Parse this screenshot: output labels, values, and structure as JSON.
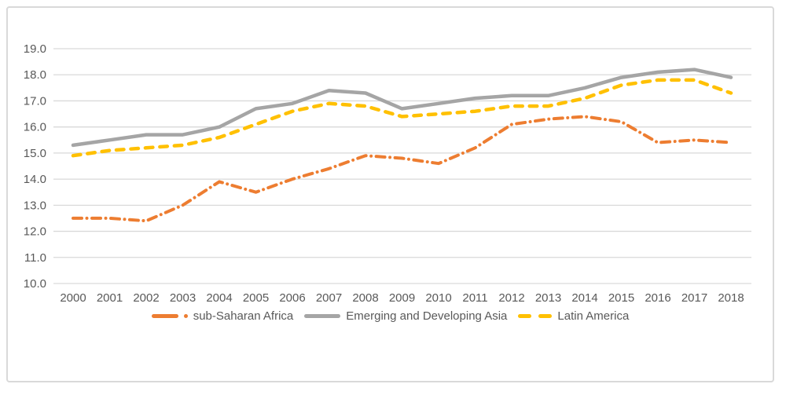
{
  "chart_data": {
    "type": "line",
    "title": "",
    "xlabel": "",
    "ylabel": "",
    "x": [
      "2000",
      "2001",
      "2002",
      "2003",
      "2004",
      "2005",
      "2006",
      "2007",
      "2008",
      "2009",
      "2010",
      "2011",
      "2012",
      "2013",
      "2014",
      "2015",
      "2016",
      "2017",
      "2018"
    ],
    "series": [
      {
        "name": "sub-Saharan Africa",
        "color": "#ED7D31",
        "style": "dash-dot",
        "values": [
          12.5,
          12.5,
          12.4,
          13.0,
          13.9,
          13.5,
          14.0,
          14.4,
          14.9,
          14.8,
          14.6,
          15.2,
          16.1,
          16.3,
          16.4,
          16.2,
          15.4,
          15.5,
          15.4
        ]
      },
      {
        "name": "Emerging and Developing Asia",
        "color": "#A5A5A5",
        "style": "solid",
        "values": [
          15.3,
          15.5,
          15.7,
          15.7,
          16.0,
          16.7,
          16.9,
          17.4,
          17.3,
          16.7,
          16.9,
          17.1,
          17.2,
          17.2,
          17.5,
          17.9,
          18.1,
          18.2,
          17.9
        ]
      },
      {
        "name": "Latin America",
        "color": "#FFC000",
        "style": "dashed",
        "values": [
          14.9,
          15.1,
          15.2,
          15.3,
          15.6,
          16.1,
          16.6,
          16.9,
          16.8,
          16.4,
          16.5,
          16.6,
          16.8,
          16.8,
          17.1,
          17.6,
          17.8,
          17.8,
          17.3
        ]
      }
    ],
    "ylim": [
      10.0,
      19.0
    ],
    "ytick_step": 1.0,
    "yticks": [
      "10.0",
      "11.0",
      "12.0",
      "13.0",
      "14.0",
      "15.0",
      "16.0",
      "17.0",
      "18.0",
      "19.0"
    ],
    "grid": true,
    "legend_position": "bottom",
    "gridline_color": "#D9D9D9",
    "axis_text_color": "#595959",
    "frame_border_color": "#D9D9D9"
  }
}
